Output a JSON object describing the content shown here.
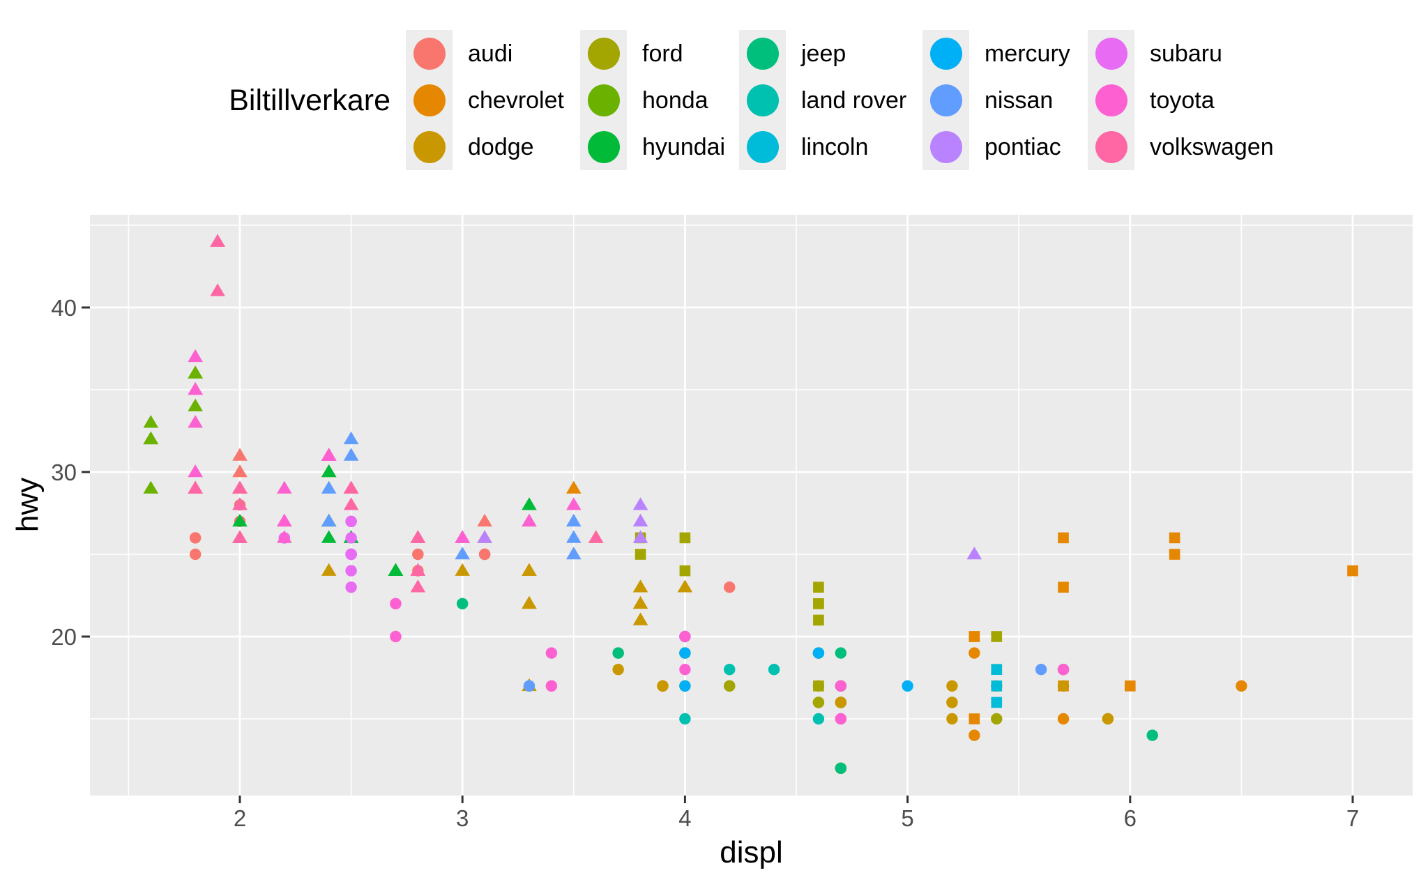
{
  "chart_data": {
    "type": "scatter",
    "title": "",
    "xlabel": "displ",
    "ylabel": "hwy",
    "legend_title": "Biltillverkare",
    "legend_position": "top",
    "xlim": [
      1.33,
      7.27
    ],
    "ylim": [
      10.4,
      45.6
    ],
    "x_major_ticks": [
      2,
      3,
      4,
      5,
      6,
      7
    ],
    "x_minor_ticks": [
      1.5,
      2.5,
      3.5,
      4.5,
      5.5,
      6.5
    ],
    "y_major_ticks": [
      20,
      30,
      40
    ],
    "y_minor_ticks": [
      15,
      25,
      35,
      45
    ],
    "grid": "white major+minor gridlines on grey panel",
    "shape_by_drv": {
      "4": "circle",
      "f": "triangle",
      "r": "square"
    },
    "series": [
      {
        "name": "audi",
        "color": "#F8766D",
        "points": [
          [
            1.8,
            29,
            "f"
          ],
          [
            1.8,
            29,
            "f"
          ],
          [
            2.0,
            31,
            "f"
          ],
          [
            2.0,
            30,
            "f"
          ],
          [
            2.8,
            26,
            "f"
          ],
          [
            2.8,
            26,
            "f"
          ],
          [
            3.1,
            27,
            "f"
          ],
          [
            1.8,
            26,
            "4"
          ],
          [
            1.8,
            25,
            "4"
          ],
          [
            2.0,
            28,
            "4"
          ],
          [
            2.0,
            27,
            "4"
          ],
          [
            2.8,
            25,
            "4"
          ],
          [
            2.8,
            25,
            "4"
          ],
          [
            3.1,
            25,
            "4"
          ],
          [
            3.1,
            25,
            "4"
          ],
          [
            2.8,
            24,
            "4"
          ],
          [
            3.1,
            25,
            "4"
          ],
          [
            4.2,
            23,
            "4"
          ]
        ]
      },
      {
        "name": "chevrolet",
        "color": "#E58700",
        "points": [
          [
            5.3,
            20,
            "r"
          ],
          [
            5.3,
            15,
            "r"
          ],
          [
            5.3,
            20,
            "r"
          ],
          [
            5.7,
            17,
            "r"
          ],
          [
            6.0,
            17,
            "r"
          ],
          [
            5.7,
            26,
            "r"
          ],
          [
            5.7,
            23,
            "r"
          ],
          [
            6.2,
            26,
            "r"
          ],
          [
            6.2,
            25,
            "r"
          ],
          [
            7.0,
            24,
            "r"
          ],
          [
            5.3,
            19,
            "4"
          ],
          [
            5.3,
            14,
            "4"
          ],
          [
            5.7,
            15,
            "4"
          ],
          [
            6.5,
            17,
            "4"
          ],
          [
            2.4,
            27,
            "f"
          ],
          [
            2.4,
            30,
            "f"
          ],
          [
            3.1,
            26,
            "f"
          ],
          [
            3.5,
            29,
            "f"
          ],
          [
            3.6,
            26,
            "f"
          ]
        ]
      },
      {
        "name": "dodge",
        "color": "#C99800",
        "points": [
          [
            2.4,
            24,
            "f"
          ],
          [
            3.0,
            24,
            "f"
          ],
          [
            3.3,
            22,
            "f"
          ],
          [
            3.3,
            22,
            "f"
          ],
          [
            3.3,
            24,
            "f"
          ],
          [
            3.3,
            24,
            "f"
          ],
          [
            3.3,
            17,
            "f"
          ],
          [
            3.8,
            23,
            "f"
          ],
          [
            3.8,
            22,
            "f"
          ],
          [
            3.8,
            21,
            "f"
          ],
          [
            4.0,
            23,
            "f"
          ],
          [
            3.7,
            19,
            "4"
          ],
          [
            3.7,
            18,
            "4"
          ],
          [
            3.9,
            17,
            "4"
          ],
          [
            3.9,
            17,
            "4"
          ],
          [
            4.7,
            16,
            "4"
          ],
          [
            4.7,
            16,
            "4"
          ],
          [
            4.7,
            12,
            "4"
          ],
          [
            4.7,
            16,
            "4"
          ],
          [
            5.2,
            17,
            "4"
          ],
          [
            3.9,
            17,
            "4"
          ],
          [
            4.7,
            17,
            "4"
          ],
          [
            4.7,
            12,
            "4"
          ],
          [
            4.7,
            17,
            "4"
          ],
          [
            5.2,
            16,
            "4"
          ],
          [
            5.7,
            18,
            "4"
          ],
          [
            5.9,
            15,
            "4"
          ],
          [
            4.7,
            16,
            "4"
          ],
          [
            4.7,
            12,
            "4"
          ],
          [
            4.7,
            17,
            "4"
          ],
          [
            4.7,
            17,
            "4"
          ],
          [
            4.7,
            16,
            "4"
          ],
          [
            4.7,
            12,
            "4"
          ],
          [
            5.2,
            15,
            "4"
          ],
          [
            5.2,
            16,
            "4"
          ],
          [
            5.7,
            17,
            "4"
          ],
          [
            5.9,
            15,
            "4"
          ]
        ]
      },
      {
        "name": "ford",
        "color": "#A3A500",
        "points": [
          [
            4.6,
            17,
            "r"
          ],
          [
            5.4,
            17,
            "r"
          ],
          [
            5.4,
            18,
            "r"
          ],
          [
            3.8,
            26,
            "r"
          ],
          [
            3.8,
            25,
            "r"
          ],
          [
            4.0,
            26,
            "r"
          ],
          [
            4.0,
            24,
            "r"
          ],
          [
            4.6,
            21,
            "r"
          ],
          [
            4.6,
            22,
            "r"
          ],
          [
            4.6,
            23,
            "r"
          ],
          [
            4.6,
            22,
            "r"
          ],
          [
            5.4,
            20,
            "r"
          ],
          [
            4.0,
            17,
            "4"
          ],
          [
            4.0,
            19,
            "4"
          ],
          [
            4.0,
            17,
            "4"
          ],
          [
            4.0,
            19,
            "4"
          ],
          [
            4.6,
            19,
            "4"
          ],
          [
            4.6,
            19,
            "4"
          ],
          [
            4.2,
            17,
            "4"
          ],
          [
            4.2,
            17,
            "4"
          ],
          [
            4.6,
            16,
            "4"
          ],
          [
            4.6,
            16,
            "4"
          ],
          [
            4.6,
            17,
            "4"
          ],
          [
            5.4,
            15,
            "4"
          ],
          [
            5.4,
            17,
            "4"
          ]
        ]
      },
      {
        "name": "honda",
        "color": "#6BB100",
        "points": [
          [
            1.6,
            33,
            "f"
          ],
          [
            1.6,
            32,
            "f"
          ],
          [
            1.6,
            32,
            "f"
          ],
          [
            1.6,
            29,
            "f"
          ],
          [
            1.6,
            32,
            "f"
          ],
          [
            1.8,
            34,
            "f"
          ],
          [
            1.8,
            36,
            "f"
          ],
          [
            1.8,
            36,
            "f"
          ],
          [
            2.0,
            29,
            "f"
          ]
        ]
      },
      {
        "name": "hyundai",
        "color": "#00BA38",
        "points": [
          [
            2.4,
            26,
            "f"
          ],
          [
            2.4,
            27,
            "f"
          ],
          [
            2.4,
            30,
            "f"
          ],
          [
            2.4,
            31,
            "f"
          ],
          [
            2.5,
            26,
            "f"
          ],
          [
            2.5,
            26,
            "f"
          ],
          [
            3.3,
            28,
            "f"
          ],
          [
            2.0,
            26,
            "f"
          ],
          [
            2.0,
            29,
            "f"
          ],
          [
            2.0,
            28,
            "f"
          ],
          [
            2.0,
            27,
            "f"
          ],
          [
            2.7,
            24,
            "f"
          ],
          [
            2.7,
            24,
            "f"
          ],
          [
            2.7,
            24,
            "f"
          ]
        ]
      },
      {
        "name": "jeep",
        "color": "#00BF7D",
        "points": [
          [
            3.0,
            22,
            "4"
          ],
          [
            3.7,
            19,
            "4"
          ],
          [
            4.0,
            20,
            "4"
          ],
          [
            4.7,
            17,
            "4"
          ],
          [
            4.7,
            12,
            "4"
          ],
          [
            4.7,
            19,
            "4"
          ],
          [
            5.7,
            18,
            "4"
          ],
          [
            6.1,
            14,
            "4"
          ]
        ]
      },
      {
        "name": "land rover",
        "color": "#00C0AF",
        "points": [
          [
            4.0,
            15,
            "4"
          ],
          [
            4.2,
            18,
            "4"
          ],
          [
            4.4,
            18,
            "4"
          ],
          [
            4.6,
            15,
            "4"
          ]
        ]
      },
      {
        "name": "lincoln",
        "color": "#00BCD8",
        "points": [
          [
            5.4,
            17,
            "r"
          ],
          [
            5.4,
            16,
            "r"
          ],
          [
            5.4,
            18,
            "r"
          ]
        ]
      },
      {
        "name": "mercury",
        "color": "#00B0F6",
        "points": [
          [
            4.0,
            17,
            "4"
          ],
          [
            4.0,
            19,
            "4"
          ],
          [
            4.6,
            19,
            "4"
          ],
          [
            5.0,
            17,
            "4"
          ]
        ]
      },
      {
        "name": "nissan",
        "color": "#619CFF",
        "points": [
          [
            2.4,
            29,
            "f"
          ],
          [
            2.4,
            27,
            "f"
          ],
          [
            2.5,
            31,
            "f"
          ],
          [
            2.5,
            32,
            "f"
          ],
          [
            3.5,
            27,
            "f"
          ],
          [
            3.5,
            26,
            "f"
          ],
          [
            3.5,
            25,
            "f"
          ],
          [
            3.0,
            26,
            "f"
          ],
          [
            3.0,
            25,
            "f"
          ],
          [
            3.3,
            17,
            "4"
          ],
          [
            3.3,
            17,
            "4"
          ],
          [
            4.0,
            20,
            "4"
          ],
          [
            5.6,
            18,
            "4"
          ]
        ]
      },
      {
        "name": "pontiac",
        "color": "#B983FF",
        "points": [
          [
            3.1,
            26,
            "f"
          ],
          [
            3.8,
            26,
            "f"
          ],
          [
            3.8,
            27,
            "f"
          ],
          [
            3.8,
            28,
            "f"
          ],
          [
            5.3,
            25,
            "f"
          ]
        ]
      },
      {
        "name": "subaru",
        "color": "#E76BF3",
        "points": [
          [
            2.5,
            25,
            "4"
          ],
          [
            2.5,
            24,
            "4"
          ],
          [
            2.5,
            27,
            "4"
          ],
          [
            2.5,
            25,
            "4"
          ],
          [
            2.5,
            26,
            "4"
          ],
          [
            2.5,
            23,
            "4"
          ],
          [
            2.2,
            26,
            "4"
          ],
          [
            2.2,
            26,
            "4"
          ],
          [
            2.5,
            25,
            "4"
          ],
          [
            2.5,
            25,
            "4"
          ],
          [
            2.5,
            25,
            "4"
          ],
          [
            2.5,
            27,
            "4"
          ],
          [
            2.5,
            25,
            "4"
          ],
          [
            2.5,
            27,
            "4"
          ]
        ]
      },
      {
        "name": "toyota",
        "color": "#FD61D1",
        "points": [
          [
            2.7,
            20,
            "4"
          ],
          [
            2.7,
            20,
            "4"
          ],
          [
            3.4,
            19,
            "4"
          ],
          [
            3.4,
            17,
            "4"
          ],
          [
            4.0,
            20,
            "4"
          ],
          [
            4.7,
            17,
            "4"
          ],
          [
            4.7,
            15,
            "4"
          ],
          [
            5.7,
            18,
            "4"
          ],
          [
            4.7,
            15,
            "4"
          ],
          [
            5.7,
            18,
            "4"
          ],
          [
            2.7,
            22,
            "4"
          ],
          [
            2.7,
            22,
            "4"
          ],
          [
            3.4,
            17,
            "4"
          ],
          [
            4.0,
            18,
            "4"
          ],
          [
            2.2,
            29,
            "f"
          ],
          [
            2.2,
            27,
            "f"
          ],
          [
            2.4,
            31,
            "f"
          ],
          [
            2.4,
            31,
            "f"
          ],
          [
            3.0,
            26,
            "f"
          ],
          [
            3.0,
            26,
            "f"
          ],
          [
            3.5,
            28,
            "f"
          ],
          [
            2.2,
            26,
            "f"
          ],
          [
            2.2,
            27,
            "f"
          ],
          [
            2.4,
            31,
            "f"
          ],
          [
            3.0,
            26,
            "f"
          ],
          [
            3.3,
            27,
            "f"
          ],
          [
            1.8,
            30,
            "f"
          ],
          [
            1.8,
            33,
            "f"
          ],
          [
            1.8,
            35,
            "f"
          ],
          [
            1.8,
            37,
            "f"
          ],
          [
            1.8,
            35,
            "f"
          ],
          [
            2.4,
            31,
            "f"
          ],
          [
            3.0,
            26,
            "f"
          ],
          [
            3.3,
            27,
            "f"
          ]
        ]
      },
      {
        "name": "volkswagen",
        "color": "#FF67A4",
        "points": [
          [
            2.0,
            29,
            "f"
          ],
          [
            2.0,
            26,
            "f"
          ],
          [
            2.0,
            29,
            "f"
          ],
          [
            2.0,
            29,
            "f"
          ],
          [
            2.8,
            24,
            "f"
          ],
          [
            1.9,
            44,
            "f"
          ],
          [
            2.0,
            29,
            "f"
          ],
          [
            2.0,
            26,
            "f"
          ],
          [
            2.0,
            29,
            "f"
          ],
          [
            2.0,
            29,
            "f"
          ],
          [
            2.5,
            29,
            "f"
          ],
          [
            2.5,
            29,
            "f"
          ],
          [
            2.8,
            23,
            "f"
          ],
          [
            2.8,
            24,
            "f"
          ],
          [
            1.9,
            44,
            "f"
          ],
          [
            1.9,
            41,
            "f"
          ],
          [
            2.0,
            29,
            "f"
          ],
          [
            2.0,
            26,
            "f"
          ],
          [
            2.5,
            28,
            "f"
          ],
          [
            2.5,
            29,
            "f"
          ],
          [
            1.8,
            29,
            "f"
          ],
          [
            1.8,
            29,
            "f"
          ],
          [
            2.0,
            28,
            "f"
          ],
          [
            2.0,
            29,
            "f"
          ],
          [
            2.8,
            26,
            "f"
          ],
          [
            2.8,
            26,
            "f"
          ],
          [
            3.6,
            26,
            "f"
          ]
        ]
      }
    ]
  },
  "colors": {
    "background": "#FFFFFF",
    "panel_background": "#EBEBEB",
    "grid": "#FFFFFF",
    "tick_marks": "#333333",
    "tick_labels": "#4D4D4D",
    "axis_titles": "#000000",
    "legend_key_background": "#EDEDED",
    "legend_text": "#000000"
  }
}
